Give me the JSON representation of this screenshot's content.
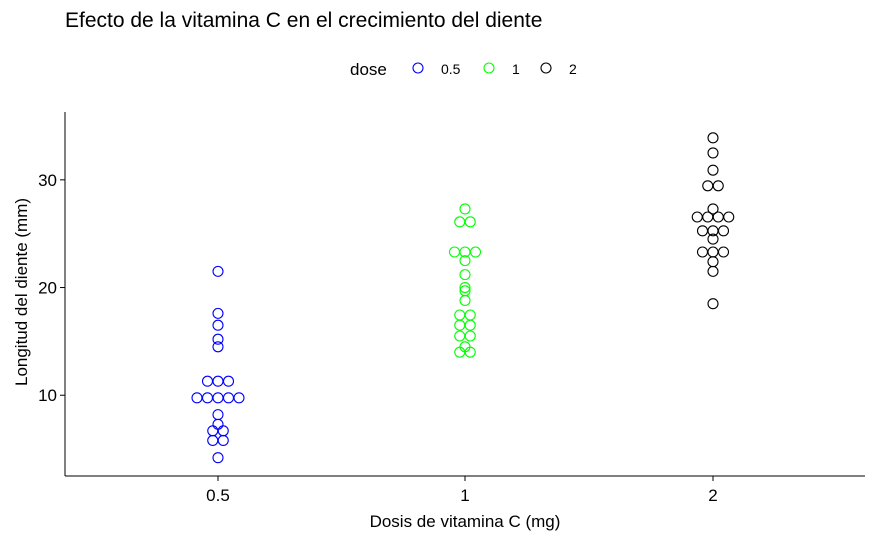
{
  "chart_data": {
    "type": "scatter",
    "subtype": "dotplot",
    "title": "Efecto de la vitamina C en el crecimiento del diente",
    "xlabel": "Dosis de vitamina C (mg)",
    "ylabel": "Longitud del diente (mm)",
    "categories": [
      "0.5",
      "1",
      "2"
    ],
    "ylim": [
      2.5,
      36.3
    ],
    "yticks": [
      10,
      20,
      30
    ],
    "grid": false,
    "legend": {
      "title": "dose",
      "placement": "top"
    },
    "series": [
      {
        "name": "0.5",
        "color": "#0000ff",
        "values": [
          4.2,
          5.8,
          5.8,
          6.4,
          7.0,
          7.3,
          8.2,
          9.4,
          9.7,
          9.7,
          10.0,
          10.0,
          11.2,
          11.2,
          11.5,
          15.2,
          14.5,
          16.5,
          17.6,
          21.5
        ]
      },
      {
        "name": "1",
        "color": "#00ff00",
        "values": [
          14.0,
          14.5,
          14.0,
          15.2,
          15.8,
          16.5,
          16.5,
          17.3,
          17.6,
          18.8,
          19.7,
          20.0,
          21.2,
          22.5,
          23.0,
          23.3,
          23.6,
          25.8,
          26.4,
          27.3
        ]
      },
      {
        "name": "2",
        "color": "#000000",
        "values": [
          18.5,
          21.5,
          22.4,
          23.0,
          23.3,
          23.6,
          24.5,
          24.8,
          25.5,
          25.5,
          26.4,
          26.4,
          26.7,
          27.3,
          29.4,
          29.5,
          30.9,
          32.5,
          33.9,
          26.7
        ]
      }
    ]
  }
}
